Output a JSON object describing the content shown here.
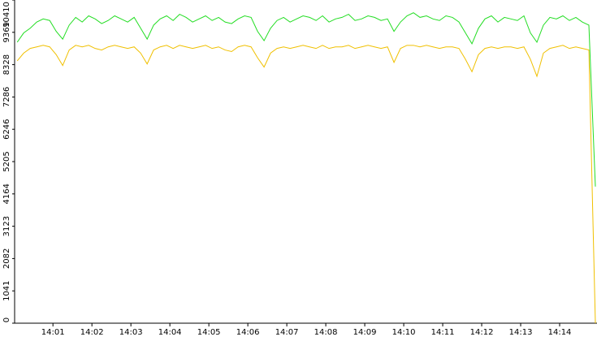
{
  "chart_data": {
    "type": "line",
    "x": [
      5,
      15,
      25,
      35,
      45,
      55,
      65,
      75,
      85,
      95,
      105,
      115,
      125,
      135,
      145,
      155,
      165,
      175,
      185,
      195,
      205,
      215,
      225,
      235,
      245,
      255,
      265,
      275,
      285,
      295,
      305,
      315,
      325,
      335,
      345,
      355,
      365,
      375,
      385,
      395,
      405,
      415,
      425,
      435,
      445,
      455,
      465,
      475,
      485,
      495,
      505,
      515,
      525,
      535,
      545,
      555,
      565,
      575,
      585,
      595,
      605,
      615,
      625,
      635,
      645,
      655,
      665,
      675,
      685,
      695,
      705,
      715,
      725,
      735,
      745,
      755,
      765,
      775,
      785,
      795,
      805,
      815,
      825,
      835,
      845,
      855,
      865,
      875,
      885,
      895
    ],
    "series": [
      {
        "color": "#22dd22",
        "values": [
          9050,
          9350,
          9500,
          9700,
          9800,
          9750,
          9400,
          9150,
          9600,
          9850,
          9700,
          9900,
          9800,
          9650,
          9750,
          9900,
          9800,
          9700,
          9850,
          9500,
          9150,
          9600,
          9800,
          9900,
          9750,
          9950,
          9850,
          9700,
          9800,
          9900,
          9750,
          9850,
          9700,
          9650,
          9800,
          9900,
          9850,
          9400,
          9100,
          9500,
          9750,
          9850,
          9700,
          9800,
          9900,
          9850,
          9750,
          9900,
          9700,
          9800,
          9850,
          9950,
          9750,
          9800,
          9900,
          9850,
          9750,
          9800,
          9400,
          9700,
          9900,
          10000,
          9850,
          9900,
          9800,
          9750,
          9900,
          9850,
          9700,
          9350,
          9000,
          9500,
          9800,
          9900,
          9700,
          9850,
          9800,
          9750,
          9900,
          9350,
          9050,
          9600,
          9850,
          9800,
          9900,
          9750,
          9850,
          9700,
          9600,
          4400
        ]
      },
      {
        "color": "#f0c000",
        "values": [
          8450,
          8700,
          8850,
          8900,
          8950,
          8900,
          8650,
          8300,
          8800,
          8950,
          8900,
          8950,
          8850,
          8800,
          8900,
          8950,
          8900,
          8850,
          8900,
          8700,
          8350,
          8800,
          8900,
          8950,
          8850,
          8950,
          8900,
          8850,
          8900,
          8950,
          8850,
          8900,
          8800,
          8750,
          8900,
          8950,
          8900,
          8550,
          8250,
          8700,
          8850,
          8900,
          8850,
          8900,
          8950,
          8900,
          8850,
          8950,
          8850,
          8900,
          8900,
          8950,
          8850,
          8900,
          8950,
          8900,
          8850,
          8900,
          8400,
          8850,
          8950,
          8950,
          8900,
          8950,
          8900,
          8850,
          8900,
          8900,
          8850,
          8500,
          8100,
          8650,
          8850,
          8900,
          8850,
          8900,
          8900,
          8850,
          8900,
          8500,
          7950,
          8700,
          8850,
          8900,
          8950,
          8850,
          8900,
          8850,
          8800,
          0
        ]
      }
    ],
    "xlim": [
      1,
      895
    ],
    "xticks": [
      {
        "value": 60,
        "label": "14:01"
      },
      {
        "value": 120,
        "label": "14:02"
      },
      {
        "value": 180,
        "label": "14:03"
      },
      {
        "value": 240,
        "label": "14:04"
      },
      {
        "value": 300,
        "label": "14:05"
      },
      {
        "value": 360,
        "label": "14:06"
      },
      {
        "value": 420,
        "label": "14:07"
      },
      {
        "value": 480,
        "label": "14:08"
      },
      {
        "value": 540,
        "label": "14:09"
      },
      {
        "value": 600,
        "label": "14:10"
      },
      {
        "value": 660,
        "label": "14:11"
      },
      {
        "value": 720,
        "label": "14:12"
      },
      {
        "value": 780,
        "label": "14:13"
      },
      {
        "value": 840,
        "label": "14:14"
      }
    ],
    "ylim": [
      0,
      10410
    ],
    "yticks": [
      0,
      1041,
      2082,
      3123,
      4164,
      5205,
      6246,
      7286,
      8328,
      9369,
      10410
    ]
  }
}
